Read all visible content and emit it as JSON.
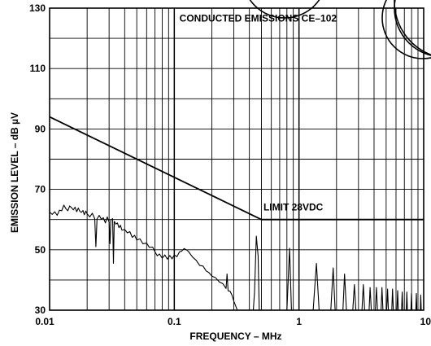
{
  "chart_data": {
    "type": "line",
    "title": "",
    "xlabel": "FREQUENCY – MHz",
    "ylabel": "EMISSION LEVEL – dB µV",
    "x_scale": "log",
    "xlim": [
      0.01,
      10
    ],
    "ylim": [
      30,
      130
    ],
    "grid": true,
    "x_ticks": [
      0.01,
      0.1,
      1,
      10
    ],
    "x_tick_labels": [
      "0.01",
      "0.1",
      "1",
      "10"
    ],
    "y_ticks": [
      30,
      50,
      70,
      90,
      110,
      130
    ],
    "y_tick_labels": [
      "30",
      "50",
      "70",
      "90",
      "110",
      "130"
    ],
    "annotations": [
      {
        "text": "CONDUCTED EMISSIONS   CE–102",
        "x": 0.11,
        "y": 125.5,
        "anchor": "start"
      },
      {
        "text": "LIMIT   28VDC",
        "x": 0.9,
        "y": 63,
        "anchor": "middle"
      }
    ],
    "series": [
      {
        "name": "LIMIT 28VDC",
        "points": [
          [
            0.01,
            94
          ],
          [
            0.5,
            60
          ],
          [
            10,
            60
          ]
        ]
      },
      {
        "name": "",
        "points": [
          [
            0.01,
            62.5
          ],
          [
            0.0105,
            61.7
          ],
          [
            0.011,
            62.6
          ],
          [
            0.0115,
            61.4
          ],
          [
            0.012,
            63.1
          ],
          [
            0.0125,
            62.9
          ],
          [
            0.013,
            64.8
          ],
          [
            0.0135,
            63.6
          ],
          [
            0.014,
            62.9
          ],
          [
            0.0145,
            64.5
          ],
          [
            0.015,
            63.9
          ],
          [
            0.0155,
            63.2
          ],
          [
            0.016,
            64.1
          ],
          [
            0.0165,
            62.6
          ],
          [
            0.017,
            63.8
          ],
          [
            0.0175,
            62.7
          ],
          [
            0.018,
            62.4
          ],
          [
            0.0185,
            63.0
          ],
          [
            0.019,
            61.6
          ],
          [
            0.0195,
            62.8
          ],
          [
            0.02,
            61.9
          ],
          [
            0.021,
            60.9
          ],
          [
            0.022,
            62.1
          ],
          [
            0.023,
            60.3
          ],
          [
            0.0235,
            51.0
          ],
          [
            0.024,
            60.2
          ],
          [
            0.025,
            61.4
          ],
          [
            0.026,
            60.1
          ],
          [
            0.027,
            60.6
          ],
          [
            0.028,
            58.9
          ],
          [
            0.029,
            60.9
          ],
          [
            0.03,
            59.1
          ],
          [
            0.0305,
            52.0
          ],
          [
            0.031,
            59.8
          ],
          [
            0.032,
            60.3
          ],
          [
            0.0325,
            45.5
          ],
          [
            0.033,
            59.4
          ],
          [
            0.034,
            58.5
          ],
          [
            0.035,
            58.9
          ],
          [
            0.036,
            57.3
          ],
          [
            0.037,
            58.1
          ],
          [
            0.038,
            56.5
          ],
          [
            0.04,
            56.7
          ],
          [
            0.042,
            55.6
          ],
          [
            0.044,
            56.0
          ],
          [
            0.046,
            54.1
          ],
          [
            0.048,
            54.8
          ],
          [
            0.05,
            53.2
          ],
          [
            0.053,
            53.6
          ],
          [
            0.056,
            52.0
          ],
          [
            0.06,
            52.2
          ],
          [
            0.063,
            50.8
          ],
          [
            0.067,
            50.9
          ],
          [
            0.07,
            49.3
          ],
          [
            0.073,
            48.0
          ],
          [
            0.076,
            48.6
          ],
          [
            0.08,
            47.2
          ],
          [
            0.084,
            48.3
          ],
          [
            0.088,
            46.9
          ],
          [
            0.092,
            48.1
          ],
          [
            0.096,
            47.0
          ],
          [
            0.1,
            48.3
          ],
          [
            0.105,
            47.7
          ],
          [
            0.11,
            49.3
          ],
          [
            0.115,
            49.6
          ],
          [
            0.12,
            50.4
          ],
          [
            0.125,
            50.0
          ],
          [
            0.13,
            49.4
          ],
          [
            0.14,
            47.6
          ],
          [
            0.15,
            46.5
          ],
          [
            0.16,
            44.8
          ],
          [
            0.17,
            44.6
          ],
          [
            0.18,
            43.0
          ],
          [
            0.19,
            42.4
          ],
          [
            0.2,
            41.3
          ],
          [
            0.215,
            40.7
          ],
          [
            0.23,
            39.3
          ],
          [
            0.245,
            38.8
          ],
          [
            0.26,
            37.2
          ],
          [
            0.265,
            42.0
          ],
          [
            0.27,
            36.4
          ],
          [
            0.28,
            36.3
          ],
          [
            0.29,
            35.0
          ],
          [
            0.3,
            33.0
          ],
          [
            0.31,
            31.5
          ],
          [
            0.32,
            30.0
          ],
          [
            0.35,
            30.0
          ],
          [
            0.4,
            30.0
          ],
          [
            0.43,
            30.0
          ],
          [
            0.44,
            36.0
          ],
          [
            0.455,
            54.5
          ],
          [
            0.47,
            48.0
          ],
          [
            0.48,
            30.0
          ],
          [
            0.8,
            30.0
          ],
          [
            0.84,
            50.5
          ],
          [
            0.87,
            30.0
          ],
          [
            1.3,
            30.0
          ],
          [
            1.38,
            45.5
          ],
          [
            1.45,
            30.0
          ],
          [
            1.8,
            30.0
          ],
          [
            1.88,
            44.0
          ],
          [
            1.95,
            30.0
          ],
          [
            2.25,
            30.0
          ],
          [
            2.32,
            42.0
          ],
          [
            2.4,
            30.0
          ],
          [
            2.7,
            30.0
          ],
          [
            2.78,
            38.5
          ],
          [
            2.86,
            30.0
          ],
          [
            3.2,
            30.0
          ],
          [
            3.28,
            38.5
          ],
          [
            3.36,
            30.0
          ],
          [
            3.65,
            30.0
          ],
          [
            3.72,
            37.5
          ],
          [
            3.8,
            30.0
          ],
          [
            4.1,
            30.0
          ],
          [
            4.18,
            37.5
          ],
          [
            4.26,
            30.0
          ],
          [
            4.55,
            30.0
          ],
          [
            4.63,
            37.5
          ],
          [
            4.71,
            30.0
          ],
          [
            5.05,
            30.0
          ],
          [
            5.13,
            37.0
          ],
          [
            5.21,
            30.0
          ],
          [
            5.55,
            30.0
          ],
          [
            5.63,
            37.0
          ],
          [
            5.71,
            30.0
          ],
          [
            6.1,
            30.0
          ],
          [
            6.18,
            36.5
          ],
          [
            6.26,
            30.0
          ],
          [
            6.65,
            30.0
          ],
          [
            6.73,
            36.0
          ],
          [
            6.81,
            30.0
          ],
          [
            7.25,
            30.0
          ],
          [
            7.33,
            36.0
          ],
          [
            7.41,
            30.0
          ],
          [
            7.9,
            30.0
          ],
          [
            7.98,
            35.5
          ],
          [
            8.06,
            30.0
          ],
          [
            8.65,
            30.0
          ],
          [
            8.73,
            35.5
          ],
          [
            8.81,
            30.0
          ],
          [
            9.4,
            30.0
          ],
          [
            9.48,
            35.0
          ],
          [
            9.56,
            30.0
          ]
        ]
      }
    ]
  }
}
